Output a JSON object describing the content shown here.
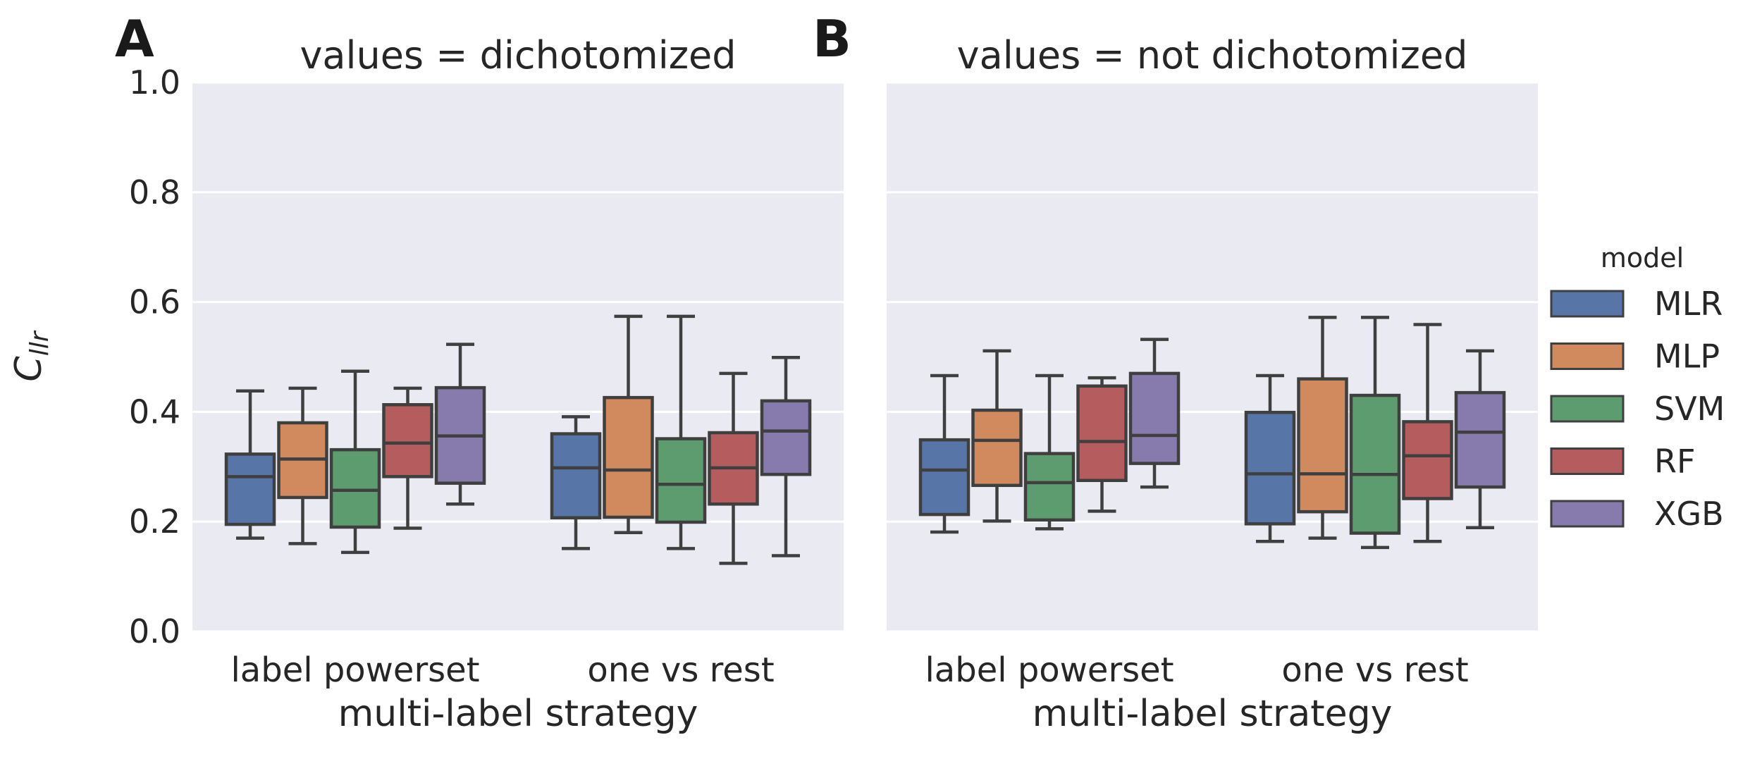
{
  "figure": {
    "background": "#ffffff",
    "panel_background": "#eaeaf2",
    "grid_color": "#ffffff",
    "edge_color": "#3f3f3f",
    "text_color": "#262626"
  },
  "panel_letters": {
    "a": "A",
    "b": "B"
  },
  "y_axis": {
    "label_main": "C",
    "label_sub": "llr",
    "ticks": [
      "0.0",
      "0.2",
      "0.4",
      "0.6",
      "0.8",
      "1.0"
    ],
    "range": [
      0.0,
      1.0
    ]
  },
  "legend": {
    "title": "model",
    "entries": [
      {
        "label": "MLR",
        "color": "#5875a8"
      },
      {
        "label": "MLP",
        "color": "#d08a5e"
      },
      {
        "label": "SVM",
        "color": "#5c9c6f"
      },
      {
        "label": "RF",
        "color": "#b55c5f"
      },
      {
        "label": "XGB",
        "color": "#877aad"
      }
    ]
  },
  "chart_data": [
    {
      "type": "box",
      "panel": "A",
      "title": "values = dichotomized",
      "categories": [
        "label powerset",
        "one vs rest"
      ],
      "xlabel": "multi-label strategy",
      "ylabel": "C_llr",
      "ylim": [
        0,
        1
      ],
      "grid": true,
      "series": [
        {
          "name": "MLR",
          "boxes": [
            {
              "whislo": 0.17,
              "q1": 0.195,
              "med": 0.282,
              "q3": 0.323,
              "whishi": 0.438
            },
            {
              "whislo": 0.151,
              "q1": 0.207,
              "med": 0.298,
              "q3": 0.36,
              "whishi": 0.391
            }
          ]
        },
        {
          "name": "MLP",
          "boxes": [
            {
              "whislo": 0.16,
              "q1": 0.244,
              "med": 0.314,
              "q3": 0.38,
              "whishi": 0.443
            },
            {
              "whislo": 0.18,
              "q1": 0.208,
              "med": 0.294,
              "q3": 0.426,
              "whishi": 0.574
            }
          ]
        },
        {
          "name": "SVM",
          "boxes": [
            {
              "whislo": 0.144,
              "q1": 0.19,
              "med": 0.257,
              "q3": 0.331,
              "whishi": 0.474
            },
            {
              "whislo": 0.151,
              "q1": 0.199,
              "med": 0.268,
              "q3": 0.351,
              "whishi": 0.574
            }
          ]
        },
        {
          "name": "RF",
          "boxes": [
            {
              "whislo": 0.188,
              "q1": 0.282,
              "med": 0.343,
              "q3": 0.413,
              "whishi": 0.443
            },
            {
              "whislo": 0.124,
              "q1": 0.232,
              "med": 0.298,
              "q3": 0.362,
              "whishi": 0.47
            }
          ]
        },
        {
          "name": "XGB",
          "boxes": [
            {
              "whislo": 0.232,
              "q1": 0.27,
              "med": 0.356,
              "q3": 0.444,
              "whishi": 0.523
            },
            {
              "whislo": 0.138,
              "q1": 0.286,
              "med": 0.365,
              "q3": 0.42,
              "whishi": 0.499
            }
          ]
        }
      ]
    },
    {
      "type": "box",
      "panel": "B",
      "title": "values = not dichotomized",
      "categories": [
        "label powerset",
        "one vs rest"
      ],
      "xlabel": "multi-label strategy",
      "ylabel": "C_llr",
      "ylim": [
        0,
        1
      ],
      "grid": true,
      "series": [
        {
          "name": "MLR",
          "boxes": [
            {
              "whislo": 0.181,
              "q1": 0.213,
              "med": 0.294,
              "q3": 0.349,
              "whishi": 0.466
            },
            {
              "whislo": 0.164,
              "q1": 0.196,
              "med": 0.287,
              "q3": 0.399,
              "whishi": 0.466
            }
          ]
        },
        {
          "name": "MLP",
          "boxes": [
            {
              "whislo": 0.201,
              "q1": 0.266,
              "med": 0.348,
              "q3": 0.403,
              "whishi": 0.511
            },
            {
              "whislo": 0.17,
              "q1": 0.218,
              "med": 0.287,
              "q3": 0.46,
              "whishi": 0.572
            }
          ]
        },
        {
          "name": "SVM",
          "boxes": [
            {
              "whislo": 0.187,
              "q1": 0.203,
              "med": 0.271,
              "q3": 0.324,
              "whishi": 0.466
            },
            {
              "whislo": 0.153,
              "q1": 0.179,
              "med": 0.286,
              "q3": 0.43,
              "whishi": 0.572
            }
          ]
        },
        {
          "name": "RF",
          "boxes": [
            {
              "whislo": 0.219,
              "q1": 0.275,
              "med": 0.346,
              "q3": 0.447,
              "whishi": 0.462
            },
            {
              "whislo": 0.164,
              "q1": 0.242,
              "med": 0.32,
              "q3": 0.382,
              "whishi": 0.559
            }
          ]
        },
        {
          "name": "XGB",
          "boxes": [
            {
              "whislo": 0.263,
              "q1": 0.306,
              "med": 0.357,
              "q3": 0.47,
              "whishi": 0.532
            },
            {
              "whislo": 0.189,
              "q1": 0.263,
              "med": 0.363,
              "q3": 0.435,
              "whishi": 0.511
            }
          ]
        }
      ]
    }
  ]
}
